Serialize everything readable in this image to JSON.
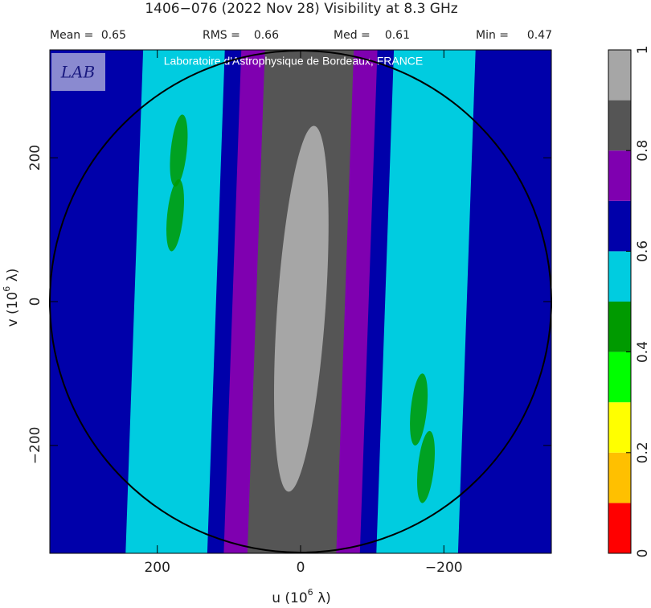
{
  "chart_data": {
    "type": "heatmap",
    "title": "1406−076  (2022 Nov 28)   Visibility at  8.3 GHz",
    "stats": [
      {
        "label": "Mean =",
        "value": 0.65
      },
      {
        "label": "RMS =",
        "value": 0.66
      },
      {
        "label": "Med =",
        "value": 0.61
      },
      {
        "label": "Min =",
        "value": 0.47
      }
    ],
    "annotation": "Laboratoire d'Astrophysique de Bordeaux, FRANCE",
    "logo_text": "LAB",
    "xlabel": {
      "text": "u  (10",
      "sup": "6",
      "tail": " λ)"
    },
    "ylabel": {
      "text": "v  (10",
      "sup": "6",
      "tail": " λ)"
    },
    "xlim": [
      350,
      -350
    ],
    "xticks": [
      200,
      0,
      {
        "value": -200,
        "label": "−200"
      }
    ],
    "ylim": [
      -350,
      350
    ],
    "yticks": [
      {
        "value": -200,
        "label": "−200"
      },
      0,
      200
    ],
    "circle_radius": 350,
    "colorbar": {
      "lim": [
        0,
        1
      ],
      "ticks": [
        0,
        0.2,
        0.4,
        0.6,
        0.8,
        1
      ],
      "bounds": [
        0,
        0.1,
        0.2,
        0.3,
        0.4,
        0.5,
        0.6,
        0.7,
        0.8,
        0.9,
        1
      ],
      "colors": [
        "#ff0000",
        "#ffc000",
        "#ffff00",
        "#00ff00",
        "#009a00",
        "#00cce0",
        "#0000aa",
        "#7f00b0",
        "#555555",
        "#a6a6a6"
      ]
    }
  }
}
